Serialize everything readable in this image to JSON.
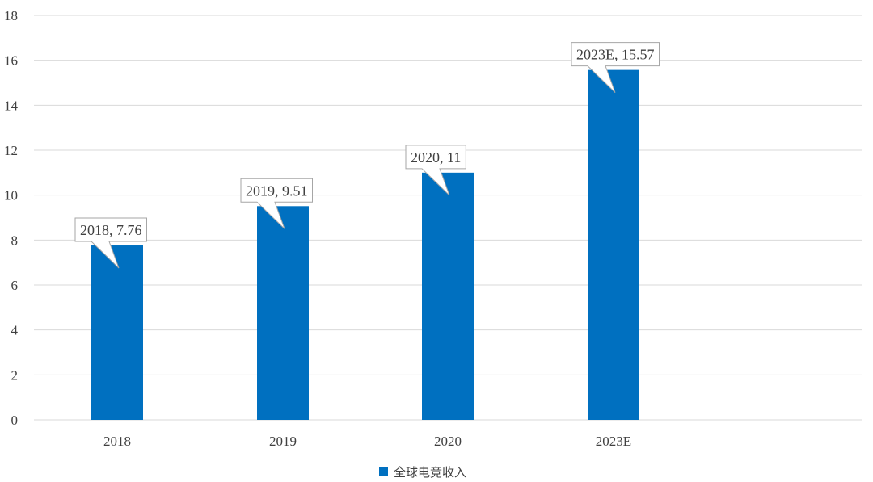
{
  "chart_data": {
    "type": "bar",
    "categories": [
      "2018",
      "2019",
      "2020",
      "2023E"
    ],
    "series": [
      {
        "name": "全球电竞收入",
        "values": [
          7.76,
          9.51,
          11,
          15.57
        ],
        "color": "#0070C0"
      }
    ],
    "data_labels": [
      "2018, 7.76",
      "2019, 9.51",
      "2020, 11",
      "2023E, 15.57"
    ],
    "ylim": [
      0,
      18
    ],
    "yticks": [
      0,
      2,
      4,
      6,
      8,
      10,
      12,
      14,
      16,
      18
    ],
    "grid": true,
    "legend_position": "bottom-center",
    "title": "",
    "xlabel": "",
    "ylabel": ""
  }
}
